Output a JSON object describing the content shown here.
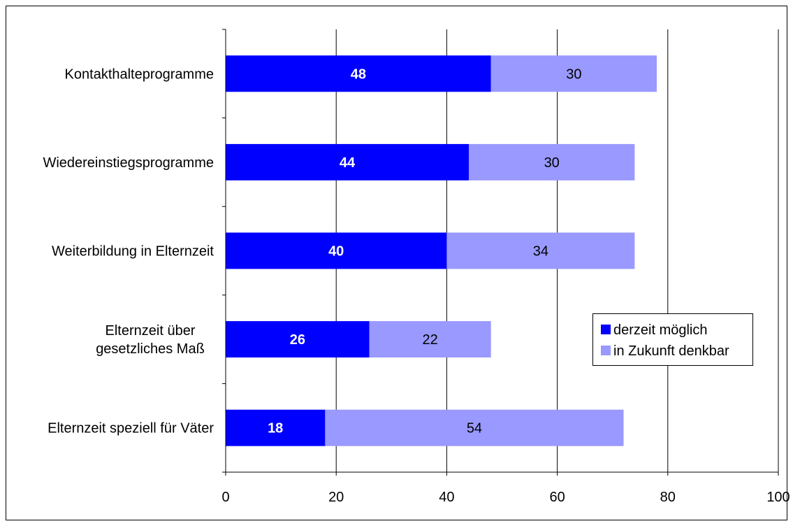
{
  "chart_data": {
    "type": "bar",
    "orientation": "horizontal",
    "stacked": true,
    "categories": [
      [
        "Kontakthalteprogramme"
      ],
      [
        "Wiedereinstiegsprogramme"
      ],
      [
        "Weiterbildung in Elternzeit"
      ],
      [
        "Elternzeit über",
        "gesetzliches Maß"
      ],
      [
        "Elternzeit speziell für Väter"
      ]
    ],
    "series": [
      {
        "name": "derzeit möglich",
        "values": [
          48,
          44,
          40,
          26,
          18
        ],
        "color": "#0000ff",
        "label_color": "#ffffff",
        "label_bold": true
      },
      {
        "name": "in Zukunft denkbar",
        "values": [
          30,
          30,
          34,
          22,
          54
        ],
        "color": "#9999ff",
        "label_color": "#000000",
        "label_bold": false
      }
    ],
    "xlim": [
      0,
      100
    ],
    "xticks": [
      0,
      20,
      40,
      60,
      80,
      100
    ],
    "grid": "vertical",
    "legend": "right"
  }
}
